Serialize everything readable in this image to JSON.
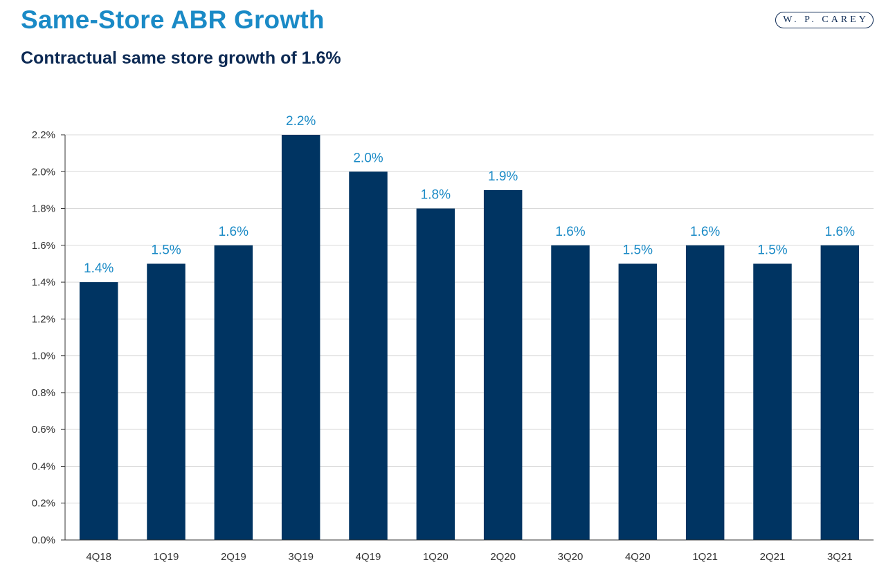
{
  "header": {
    "title": "Same-Store ABR Growth",
    "subtitle": "Contractual same store growth of 1.6%",
    "logo_text": "W. P. CAREY"
  },
  "colors": {
    "title": "#1a8ac6",
    "bar": "#003462",
    "data_label": "#1a8ac6",
    "gridline": "#d9d9d9",
    "axis": "#333333"
  },
  "chart_data": {
    "type": "bar",
    "title": "",
    "xlabel": "",
    "ylabel": "",
    "categories": [
      "4Q18",
      "1Q19",
      "2Q19",
      "3Q19",
      "4Q19",
      "1Q20",
      "2Q20",
      "3Q20",
      "4Q20",
      "1Q21",
      "2Q21",
      "3Q21"
    ],
    "values": [
      1.4,
      1.5,
      1.6,
      2.2,
      2.0,
      1.8,
      1.9,
      1.6,
      1.5,
      1.6,
      1.5,
      1.6
    ],
    "value_labels": [
      "1.4%",
      "1.5%",
      "1.6%",
      "2.2%",
      "2.0%",
      "1.8%",
      "1.9%",
      "1.6%",
      "1.5%",
      "1.6%",
      "1.5%",
      "1.6%"
    ],
    "y_ticks": [
      0.0,
      0.2,
      0.4,
      0.6,
      0.8,
      1.0,
      1.2,
      1.4,
      1.6,
      1.8,
      2.0,
      2.2
    ],
    "y_tick_labels": [
      "0.0%",
      "0.2%",
      "0.4%",
      "0.6%",
      "0.8%",
      "1.0%",
      "1.2%",
      "1.4%",
      "1.6%",
      "1.8%",
      "2.0%",
      "2.2%"
    ],
    "ylim": [
      0.0,
      2.2
    ],
    "grid": true,
    "legend": "none"
  }
}
